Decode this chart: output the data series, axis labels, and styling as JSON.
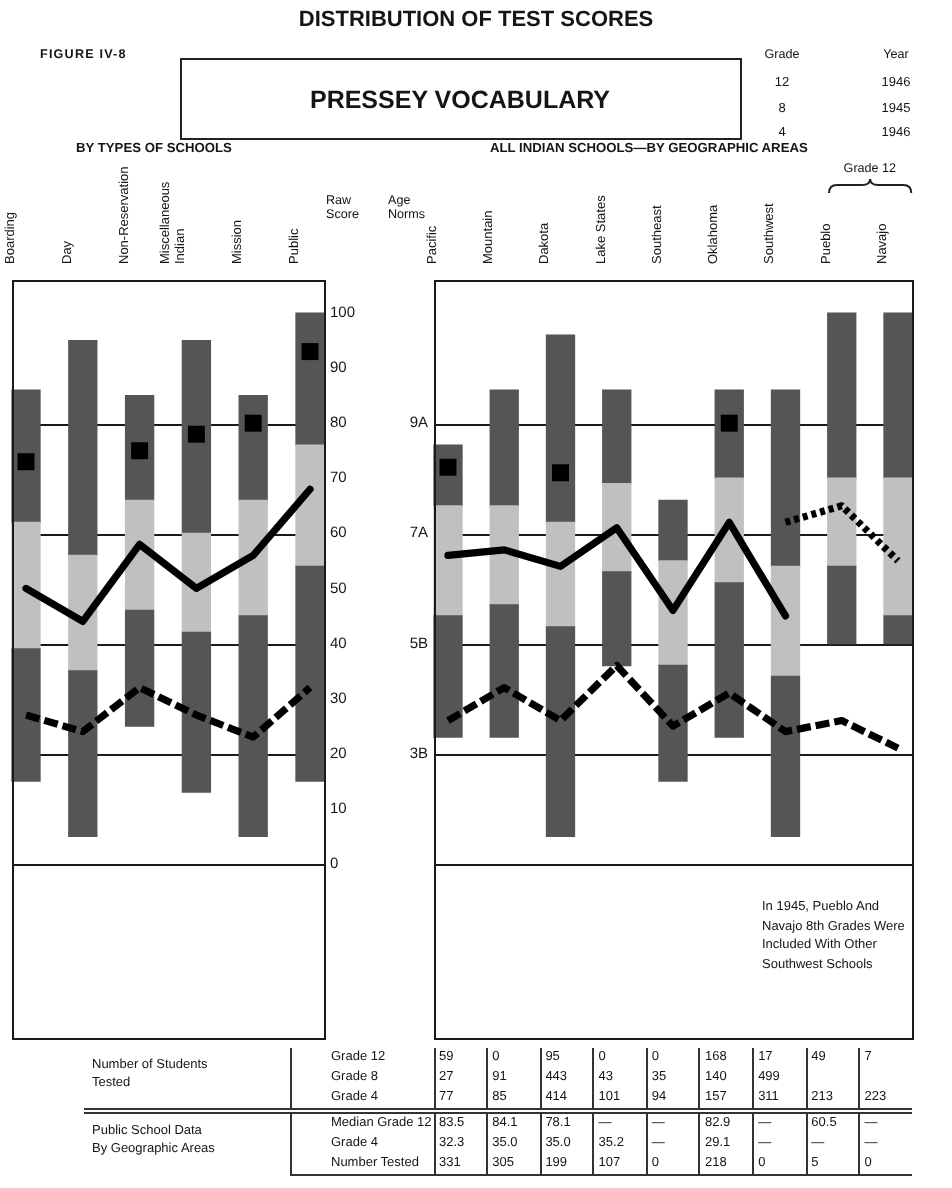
{
  "chart_data": [
    {
      "type": "other",
      "title": "DISTRIBUTION OF TEST SCORES",
      "subtitle": "PRESSEY VOCABULARY",
      "annotations": [
        "FIGURE IV-8"
      ],
      "categories": [
        "Grade",
        "Year"
      ],
      "cell_labels": [
        [
          "12",
          "1946"
        ],
        [
          "8",
          "1945"
        ],
        [
          "4",
          "1946"
        ]
      ]
    },
    {
      "type": "bar",
      "title": "BY TYPES OF SCHOOLS",
      "ylabel": "Raw Score",
      "categories": [
        "Boarding",
        "Day",
        "Non-Reservation",
        "Miscellaneous Indian",
        "Mission",
        "Public"
      ],
      "series": [
        {
          "color": "#555555",
          "base": [
            15,
            5,
            25,
            13,
            5,
            15
          ],
          "values": [
            24,
            30,
            21,
            29,
            40,
            39
          ]
        },
        {
          "color": "#c0c0c0",
          "base": [
            39,
            35,
            46,
            42,
            45,
            54
          ],
          "values": [
            23,
            21,
            20,
            18,
            21,
            22
          ]
        },
        {
          "color": "#555555",
          "base": [
            62,
            56,
            66,
            60,
            66,
            76
          ],
          "values": [
            24,
            39,
            19,
            35,
            19,
            24
          ]
        },
        {
          "type": "line",
          "color": "#000000",
          "line_style": "solid",
          "values": [
            50,
            44,
            58,
            50,
            56,
            68
          ]
        },
        {
          "type": "line",
          "color": "#000000",
          "line_style": "dashed",
          "values": [
            27,
            24,
            32,
            27,
            23,
            32
          ]
        },
        {
          "type": "scatter",
          "color": "#000000",
          "marker": "square",
          "values": [
            73,
            null,
            75,
            78,
            80,
            93
          ]
        }
      ],
      "ylim": [
        -32,
        106
      ],
      "yticks": [
        0,
        10,
        20,
        30,
        40,
        50,
        60,
        70,
        80,
        90,
        100
      ],
      "ref_lines": [
        {
          "axis": "y",
          "value": 0
        },
        {
          "axis": "y",
          "value": 20
        },
        {
          "axis": "y",
          "value": 40
        },
        {
          "axis": "y",
          "value": 60
        },
        {
          "axis": "y",
          "value": 80
        }
      ]
    },
    {
      "type": "bar",
      "title": "ALL INDIAN SCHOOLS—BY GEOGRAPHIC AREAS",
      "ylabel": "Age Norms",
      "categories": [
        "Pacific",
        "Mountain",
        "Dakota",
        "Lake States",
        "Southeast",
        "Oklahoma",
        "Southwest",
        "Pueblo",
        "Navajo"
      ],
      "series": [
        {
          "color": "#555555",
          "base": [
            23,
            23,
            5,
            36,
            15,
            23,
            5,
            40,
            40
          ],
          "values": [
            22,
            24,
            38,
            17,
            21,
            28,
            29,
            14,
            5
          ]
        },
        {
          "color": "#c0c0c0",
          "base": [
            45,
            47,
            43,
            53,
            36,
            51,
            34,
            54,
            45
          ],
          "values": [
            20,
            18,
            19,
            16,
            19,
            19,
            20,
            16,
            25
          ]
        },
        {
          "color": "#555555",
          "base": [
            65,
            65,
            62,
            69,
            55,
            70,
            54,
            70,
            70
          ],
          "values": [
            11,
            21,
            34,
            17,
            11,
            16,
            32,
            30,
            30
          ]
        },
        {
          "type": "line",
          "color": "#000000",
          "line_style": "solid",
          "values": [
            56,
            57,
            54,
            61,
            46,
            62,
            45,
            null,
            null
          ]
        },
        {
          "type": "line",
          "color": "#000000",
          "line_style": "dashed",
          "values": [
            26,
            32,
            26,
            36,
            25,
            31,
            24,
            26,
            21
          ]
        },
        {
          "type": "line",
          "color": "#000000",
          "line_style": "dotted",
          "values": [
            null,
            null,
            null,
            null,
            null,
            null,
            62,
            65,
            55
          ]
        },
        {
          "type": "scatter",
          "color": "#000000",
          "marker": "square",
          "values": [
            72,
            null,
            71,
            null,
            null,
            80,
            null,
            null,
            null
          ]
        }
      ],
      "ylim": [
        -32,
        106
      ],
      "yticks": [
        0,
        10,
        20,
        30,
        40,
        50,
        60,
        70,
        80,
        90,
        100
      ],
      "tick_labels": "x",
      "ref_lines": [
        {
          "axis": "y",
          "value": 80,
          "label": "9A"
        },
        {
          "axis": "y",
          "value": 60,
          "label": "7A"
        },
        {
          "axis": "y",
          "value": 40,
          "label": "5B"
        },
        {
          "axis": "y",
          "value": 20,
          "label": "3B"
        },
        {
          "axis": "y",
          "value": 0
        }
      ],
      "annotations": [
        "Grade 12",
        "In 1945, Pueblo And Navajo 8th Grades Were Included With Other Southwest Schools"
      ]
    },
    {
      "type": "other",
      "annotations": [
        "Number of Students Tested",
        "Public School Data By Geographic Areas"
      ],
      "y_categories": [
        "Grade 12",
        "Grade 8",
        "Grade 4",
        "Median Grade 12",
        "Grade 4",
        "Number Tested"
      ],
      "cell_labels": [
        [
          "59",
          "0",
          "95",
          "0",
          "0",
          "168",
          "17",
          "49",
          "7"
        ],
        [
          "27",
          "91",
          "443",
          "43",
          "35",
          "140",
          "499",
          null,
          null
        ],
        [
          "77",
          "85",
          "414",
          "101",
          "94",
          "157",
          "311",
          "213",
          "223"
        ],
        [
          "83.5",
          "84.1",
          "78.1",
          "—",
          "—",
          "82.9",
          "—",
          "60.5",
          "—"
        ],
        [
          "32.3",
          "35.0",
          "35.0",
          "35.2",
          "—",
          "29.1",
          "—",
          "—",
          "—"
        ],
        [
          "331",
          "305",
          "199",
          "107",
          "0",
          "218",
          "0",
          "5",
          "0"
        ]
      ]
    }
  ]
}
